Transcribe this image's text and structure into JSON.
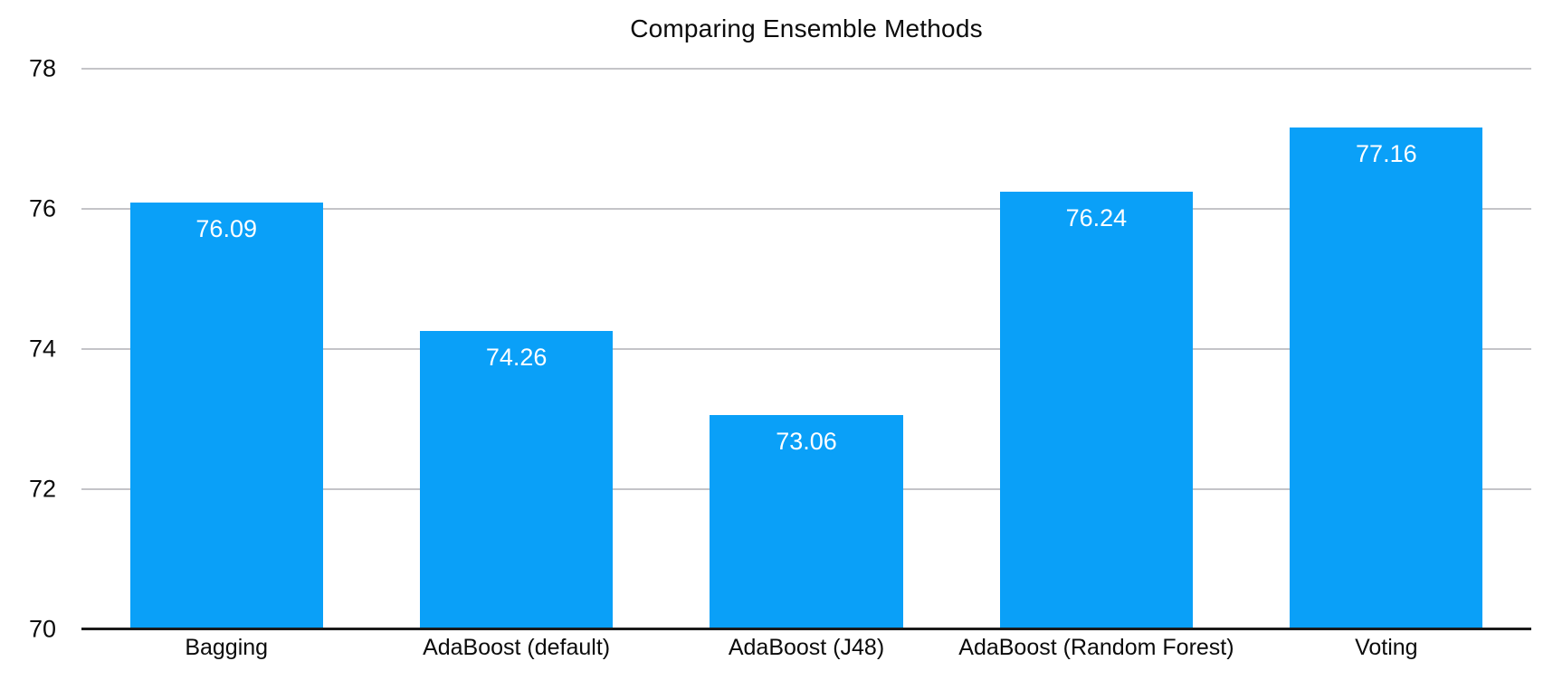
{
  "chart_data": {
    "type": "bar",
    "title": "Comparing Ensemble Methods",
    "categories": [
      "Bagging",
      "AdaBoost (default)",
      "AdaBoost (J48)",
      "AdaBoost (Random Forest)",
      "Voting"
    ],
    "values": [
      76.09,
      74.26,
      73.06,
      76.24,
      77.16
    ],
    "value_labels": [
      "76.09",
      "74.26",
      "73.06",
      "76.24",
      "77.16"
    ],
    "xlabel": "",
    "ylabel": "",
    "ylim": [
      70,
      78
    ],
    "yticks": [
      70,
      72,
      74,
      76,
      78
    ],
    "grid": true,
    "legend": false,
    "colors": {
      "bar": "#0aa0f8",
      "value_label": "#ffffff",
      "gridline": "#c4c4c8",
      "axis_line": "#1a1a1a",
      "text": "#0b0b0b",
      "background": "#ffffff"
    }
  }
}
